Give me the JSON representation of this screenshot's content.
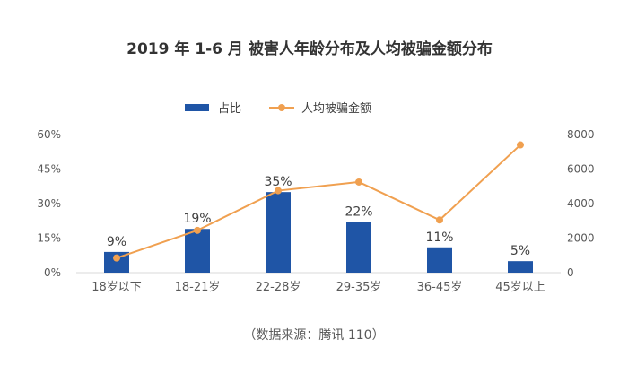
{
  "chart_data": {
    "type": "bar",
    "title": "2019 年 1-6 月 被害人年龄分布及人均被骗金额分布",
    "categories": [
      "18岁以下",
      "18-21岁",
      "22-28岁",
      "29-35岁",
      "36-45岁",
      "45岁以上"
    ],
    "series": [
      {
        "name": "占比",
        "type": "bar",
        "axis": "left",
        "values": [
          9,
          19,
          35,
          22,
          11,
          5
        ],
        "labels": [
          "9%",
          "19%",
          "35%",
          "22%",
          "11%",
          "5%"
        ],
        "color": "#1f55a6"
      },
      {
        "name": "人均被骗金额",
        "type": "line",
        "axis": "right",
        "values": [
          850,
          2450,
          4750,
          5250,
          3050,
          7400
        ],
        "color": "#f0a050"
      }
    ],
    "y_left": {
      "ticks": [
        "0%",
        "15%",
        "30%",
        "45%",
        "60%"
      ],
      "min": 0,
      "max": 60
    },
    "y_right": {
      "ticks": [
        "0",
        "2000",
        "4000",
        "6000",
        "8000"
      ],
      "min": 0,
      "max": 8000
    },
    "grid": false,
    "legend": "top-center"
  },
  "source_text": "（数据来源：腾讯 110）"
}
